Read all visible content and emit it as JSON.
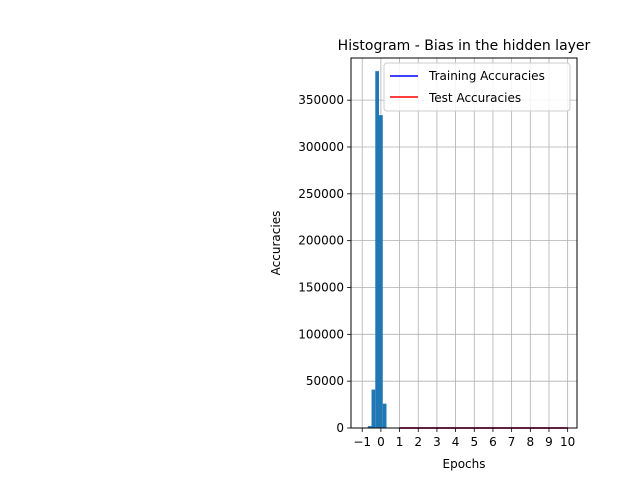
{
  "chart_data": {
    "type": "histogram",
    "title": "Histogram - Bias in the hidden layer",
    "xlabel": "Epochs",
    "ylabel": "Accuracies",
    "xlim": [
      -1.6,
      10.5
    ],
    "ylim": [
      0,
      395000
    ],
    "x_ticks": [
      -1,
      0,
      1,
      2,
      3,
      4,
      5,
      6,
      7,
      8,
      9,
      10
    ],
    "x_tick_labels": [
      "−1",
      "0",
      "1",
      "2",
      "3",
      "4",
      "5",
      "6",
      "7",
      "8",
      "9",
      "10"
    ],
    "y_ticks": [
      0,
      50000,
      100000,
      150000,
      200000,
      250000,
      300000,
      350000
    ],
    "y_tick_labels": [
      "0",
      "50000",
      "100000",
      "150000",
      "200000",
      "250000",
      "300000",
      "350000"
    ],
    "grid": true,
    "legend_position": "upper-right",
    "histogram": {
      "color": "#1f77b4",
      "bins": [
        {
          "x0": -0.7,
          "x1": -0.5,
          "count": 2000
        },
        {
          "x0": -0.5,
          "x1": -0.3,
          "count": 41000
        },
        {
          "x0": -0.3,
          "x1": -0.1,
          "count": 381000
        },
        {
          "x0": -0.1,
          "x1": 0.1,
          "count": 334000
        },
        {
          "x0": 0.1,
          "x1": 0.3,
          "count": 26000
        }
      ]
    },
    "series": [
      {
        "name": "Training Accuracies",
        "color": "#0000ff",
        "x": [
          1,
          2,
          3,
          4,
          5,
          6,
          7,
          8,
          9,
          10
        ],
        "y": [
          0,
          0,
          0,
          0,
          0,
          0,
          0,
          0,
          0,
          0
        ]
      },
      {
        "name": "Test Accuracies",
        "color": "#ff0000",
        "x": [
          1,
          2,
          3,
          4,
          5,
          6,
          7,
          8,
          9,
          10
        ],
        "y": [
          0,
          0,
          0,
          0,
          0,
          0,
          0,
          0,
          0,
          0
        ]
      }
    ]
  }
}
